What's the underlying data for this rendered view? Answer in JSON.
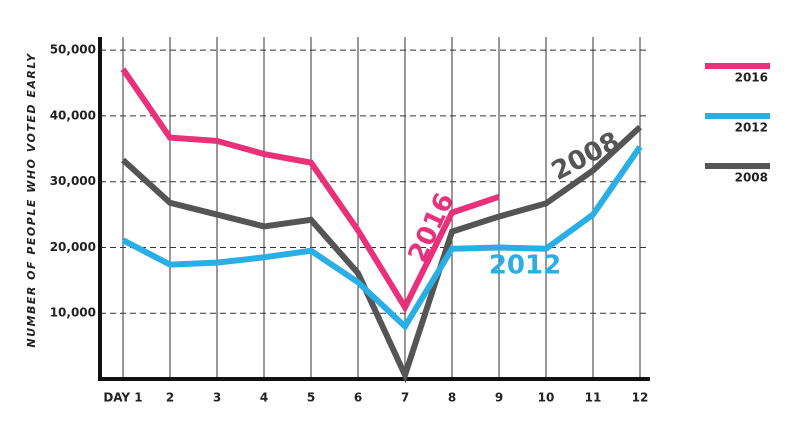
{
  "chart_data": {
    "type": "line",
    "y_label": "NUMBER OF PEOPLE WHO VOTED EARLY",
    "categories": [
      "DAY 1",
      "2",
      "3",
      "4",
      "5",
      "6",
      "7",
      "8",
      "9",
      "10",
      "11",
      "12"
    ],
    "series": [
      {
        "name": "2016",
        "color": "#e8317a",
        "values": [
          47100,
          36700,
          36200,
          34200,
          32900,
          22600,
          10900,
          25300,
          27700,
          null,
          null,
          null
        ]
      },
      {
        "name": "2012",
        "color": "#29aee6",
        "values": [
          21100,
          17400,
          17700,
          18500,
          19500,
          14700,
          8000,
          19800,
          20000,
          19800,
          25000,
          35300
        ]
      },
      {
        "name": "2008",
        "color": "#555555",
        "values": [
          33300,
          26800,
          25000,
          23200,
          24200,
          16100,
          600,
          22400,
          24700,
          26700,
          31700,
          38300
        ]
      }
    ],
    "annotations": [
      "2016",
      "2012",
      "2008"
    ],
    "ylim": [
      0,
      52000
    ],
    "yticks": [
      {
        "value": 10000,
        "label": "10,000"
      },
      {
        "value": 20000,
        "label": "20,000"
      },
      {
        "value": 30000,
        "label": "30,000"
      },
      {
        "value": 40000,
        "label": "40,000"
      },
      {
        "value": 50000,
        "label": "50,000"
      }
    ],
    "grid": true,
    "legend": "right"
  }
}
